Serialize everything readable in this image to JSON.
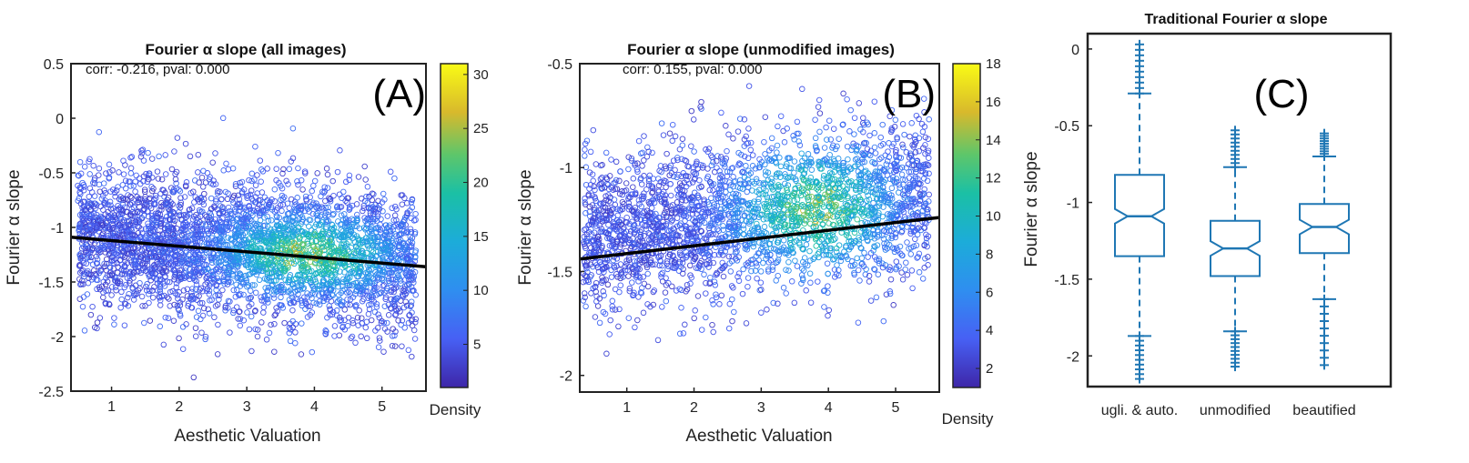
{
  "chart_data": [
    {
      "panel_label": "(A)",
      "type": "scatter",
      "title": "Fourier α slope (all images)",
      "annotation": "corr: -0.216, pval: 0.000",
      "xlabel": "Aesthetic Valuation",
      "ylabel": "Fourier α slope",
      "xlim": [
        0.4,
        5.65
      ],
      "ylim": [
        -2.5,
        0.5
      ],
      "xticks": [
        1,
        2,
        3,
        4,
        5
      ],
      "yticks": [
        0.5,
        0,
        -0.5,
        -1,
        -1.5,
        -2,
        -2.5
      ],
      "point_cloud": {
        "x_range": [
          0.5,
          5.5
        ],
        "y_center": -1.2,
        "y_spread": 0.7,
        "count": 3600
      },
      "regression_line": {
        "x": [
          0.4,
          5.65
        ],
        "y": [
          -1.09,
          -1.36
        ]
      },
      "colorbar": {
        "label": "Density",
        "range": [
          1,
          31
        ],
        "ticks": [
          5,
          10,
          15,
          20,
          25,
          30
        ]
      },
      "grid": false
    },
    {
      "panel_label": "(B)",
      "type": "scatter",
      "title": "Fourier α slope (unmodified images)",
      "annotation": "corr: 0.155, pval: 0.000",
      "xlabel": "Aesthetic Valuation",
      "ylabel": "Fourier α slope",
      "xlim": [
        0.3,
        5.65
      ],
      "ylim": [
        -2.08,
        -0.5
      ],
      "xticks": [
        1,
        2,
        3,
        4,
        5
      ],
      "yticks": [
        -0.5,
        -1,
        -1.5,
        -2
      ],
      "point_cloud": {
        "x_range": [
          0.35,
          5.5
        ],
        "y_center": -1.22,
        "y_spread": 0.42,
        "count": 2800
      },
      "regression_line": {
        "x": [
          0.3,
          5.65
        ],
        "y": [
          -1.44,
          -1.24
        ]
      },
      "colorbar": {
        "label": "Density",
        "range": [
          1,
          18
        ],
        "ticks": [
          2,
          4,
          6,
          8,
          10,
          12,
          14,
          16,
          18
        ]
      },
      "grid": false
    },
    {
      "panel_label": "(C)",
      "type": "box",
      "title": "Traditional Fourier α slope",
      "ylabel": "Fourier α slope",
      "ylim": [
        -2.2,
        0.1
      ],
      "yticks": [
        0,
        -0.5,
        -1,
        -1.5,
        -2
      ],
      "categories": [
        "ugli. & auto.",
        "unmodified",
        "beautified"
      ],
      "boxes": [
        {
          "q1": -1.35,
          "median": -1.09,
          "q3": -0.82,
          "whisker_low": -1.87,
          "whisker_high": -0.29,
          "outlier_range_high": [
            -0.29,
            0.03
          ],
          "outlier_range_low": [
            -2.15,
            -1.87
          ]
        },
        {
          "q1": -1.48,
          "median": -1.3,
          "q3": -1.12,
          "whisker_low": -1.84,
          "whisker_high": -0.77,
          "outlier_range_high": [
            -0.77,
            -0.53
          ],
          "outlier_range_low": [
            -2.07,
            -1.84
          ]
        },
        {
          "q1": -1.33,
          "median": -1.16,
          "q3": -1.01,
          "whisker_low": -1.63,
          "whisker_high": -0.7,
          "outlier_range_high": [
            -0.7,
            -0.55
          ],
          "outlier_range_low": [
            -2.06,
            -1.63
          ]
        }
      ],
      "color": "#1f77b4"
    }
  ]
}
